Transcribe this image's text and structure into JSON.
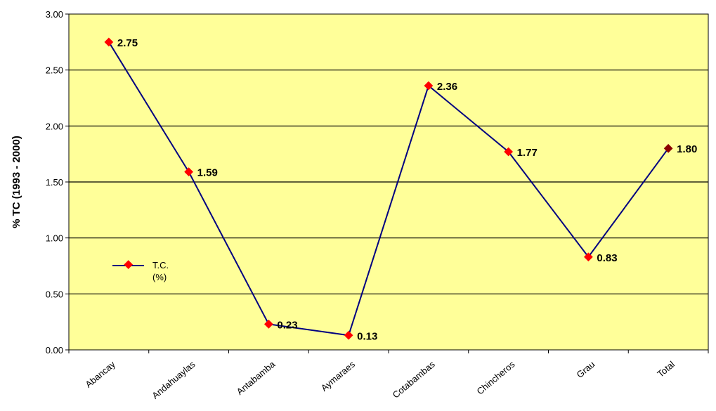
{
  "chart_data": {
    "type": "line",
    "categories": [
      "Abancay",
      "Andahuaylas",
      "Antabamba",
      "Aymaraes",
      "Cotabambas",
      "Chincheros",
      "Grau",
      "Total"
    ],
    "series": [
      {
        "name": "T.C. (%)",
        "values": [
          2.75,
          1.59,
          0.23,
          0.13,
          2.36,
          1.77,
          0.83,
          1.8
        ],
        "data_labels": [
          "2.75",
          "1.59",
          "0.23",
          "0.13",
          "2.36",
          "1.77",
          "0.83",
          "1.80"
        ]
      }
    ],
    "ylabel": "% TC (1993 - 2000)",
    "ylim": [
      0,
      3
    ],
    "yticks": [
      "0.00",
      "0.50",
      "1.00",
      "1.50",
      "2.00",
      "2.50",
      "3.00"
    ],
    "grid": true,
    "legend": {
      "position": "left",
      "line1": "T.C.",
      "line2": "(%)"
    },
    "colors": {
      "plot_bg": "#ffff99",
      "line": "#000080",
      "marker": "#ff0000",
      "total_marker": "#8b0000"
    }
  }
}
